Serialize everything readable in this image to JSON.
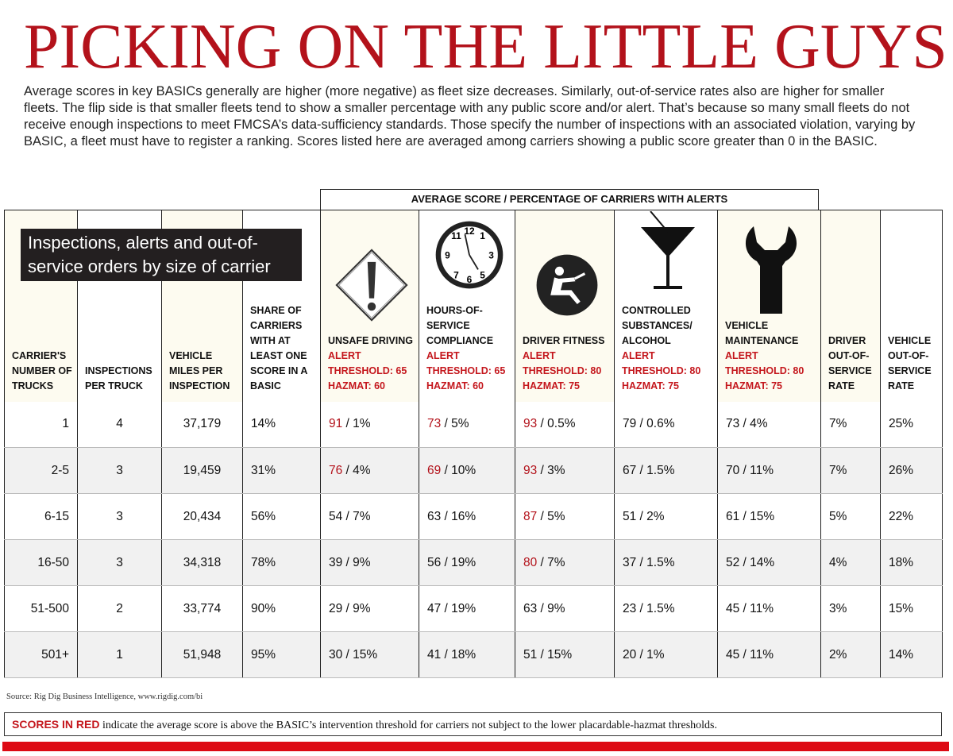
{
  "title": "PICKING ON THE LITTLE GUYS",
  "intro": "Average scores in key BASICs generally are higher (more negative) as fleet size decreases. Similarly, out-of-service rates also are higher for smaller fleets. The flip side is that smaller fleets tend to show a smaller percentage with any public score and/or alert. That’s because so many small fleets do not receive enough inspections to meet FMCSA’s data-sufficiency standards. Those specify the number of inspections with an associated violation, varying by BASIC, a fleet must have to register a ranking. Scores listed here are averaged among carriers showing a public score greater than 0 in the BASIC.",
  "group_header": "AVERAGE SCORE / PERCENTAGE OF CARRIERS WITH ALERTS",
  "caption": "Inspections, alerts and out-of-service orders by size of carrier",
  "columns": [
    {
      "label": "CARRIER'S NUMBER OF TRUCKS"
    },
    {
      "label": "INSPECTIONS PER TRUCK"
    },
    {
      "label": "VEHICLE MILES PER INSPECTION"
    },
    {
      "label": "SHARE OF CARRIERS WITH AT LEAST ONE SCORE IN A BASIC"
    },
    {
      "label": "UNSAFE DRIVING",
      "alert": "ALERT THRESHOLD: 65",
      "hazmat": "HAZMAT: 60",
      "icon": "warning-diamond-icon"
    },
    {
      "label": "HOURS-OF-SERVICE COMPLIANCE",
      "alert": "ALERT THRESHOLD: 65",
      "hazmat": "HAZMAT: 60",
      "icon": "clock-icon"
    },
    {
      "label": "DRIVER FITNESS",
      "alert": "ALERT THRESHOLD: 80",
      "hazmat": "HAZMAT: 75",
      "icon": "driver-seat-icon"
    },
    {
      "label": "CONTROLLED SUBSTANCES/ ALCOHOL",
      "alert": "ALERT THRESHOLD: 80",
      "hazmat": "HAZMAT: 75",
      "icon": "martini-glass-icon"
    },
    {
      "label": "VEHICLE MAINTENANCE",
      "alert": "ALERT THRESHOLD: 80",
      "hazmat": "HAZMAT: 75",
      "icon": "wrench-icon"
    },
    {
      "label": "DRIVER OUT-OF-SERVICE RATE"
    },
    {
      "label": "VEHICLE OUT-OF-SERVICE RATE"
    }
  ],
  "rows": [
    {
      "trucks": "1",
      "insp": "4",
      "miles": "37,179",
      "share": "14%",
      "scores": [
        {
          "s": "91",
          "p": "1%",
          "red": true
        },
        {
          "s": "73",
          "p": "5%",
          "red": true
        },
        {
          "s": "93",
          "p": "0.5%",
          "red": true
        },
        {
          "s": "79",
          "p": "0.6%"
        },
        {
          "s": "73",
          "p": "4%"
        }
      ],
      "doos": "7%",
      "voos": "25%"
    },
    {
      "trucks": "2-5",
      "insp": "3",
      "miles": "19,459",
      "share": "31%",
      "scores": [
        {
          "s": "76",
          "p": "4%",
          "red": true
        },
        {
          "s": "69",
          "p": "10%",
          "red": true
        },
        {
          "s": "93",
          "p": "3%",
          "red": true
        },
        {
          "s": "67",
          "p": "1.5%"
        },
        {
          "s": "70",
          "p": "11%"
        }
      ],
      "doos": "7%",
      "voos": "26%"
    },
    {
      "trucks": "6-15",
      "insp": "3",
      "miles": "20,434",
      "share": "56%",
      "scores": [
        {
          "s": "54",
          "p": "7%"
        },
        {
          "s": "63",
          "p": "16%"
        },
        {
          "s": "87",
          "p": "5%",
          "red": true
        },
        {
          "s": "51",
          "p": "2%"
        },
        {
          "s": "61",
          "p": "15%"
        }
      ],
      "doos": "5%",
      "voos": "22%"
    },
    {
      "trucks": "16-50",
      "insp": "3",
      "miles": "34,318",
      "share": "78%",
      "scores": [
        {
          "s": "39",
          "p": "9%"
        },
        {
          "s": "56",
          "p": "19%"
        },
        {
          "s": "80",
          "p": "7%",
          "red": true
        },
        {
          "s": "37",
          "p": "1.5%"
        },
        {
          "s": "52",
          "p": "14%"
        }
      ],
      "doos": "4%",
      "voos": "18%"
    },
    {
      "trucks": "51-500",
      "insp": "2",
      "miles": "33,774",
      "share": "90%",
      "scores": [
        {
          "s": "29",
          "p": "9%"
        },
        {
          "s": "47",
          "p": "19%"
        },
        {
          "s": "63",
          "p": "9%"
        },
        {
          "s": "23",
          "p": "1.5%"
        },
        {
          "s": "45",
          "p": "11%"
        }
      ],
      "doos": "3%",
      "voos": "15%"
    },
    {
      "trucks": "501+",
      "insp": "1",
      "miles": "51,948",
      "share": "95%",
      "scores": [
        {
          "s": "30",
          "p": "15%"
        },
        {
          "s": "41",
          "p": "18%"
        },
        {
          "s": "51",
          "p": "15%"
        },
        {
          "s": "20",
          "p": "1%"
        },
        {
          "s": "45",
          "p": "11%"
        }
      ],
      "doos": "2%",
      "voos": "14%"
    }
  ],
  "source": "Source: Rig Dig Business Intelligence, www.rigdig.com/bi",
  "note": {
    "lead": "SCORES IN RED",
    "text": " indicate the average score is above the BASIC’s intervention threshold for carriers not subject to the lower placardable-hazmat thresholds."
  },
  "colors": {
    "title": "#b3121b",
    "red": "#c4161c",
    "bar": "#dd0a14"
  }
}
